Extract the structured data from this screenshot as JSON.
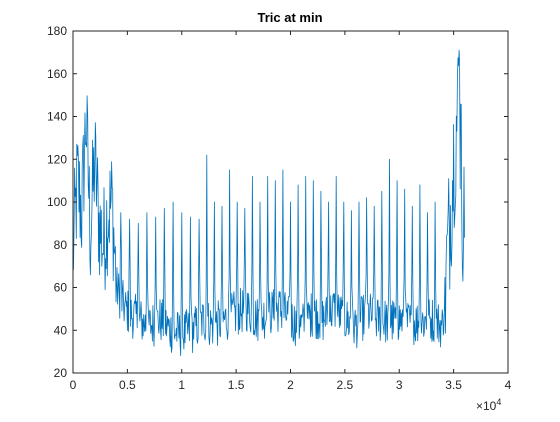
{
  "chart_data": {
    "type": "line",
    "title": "Tric at min",
    "xlabel": "",
    "ylabel": "",
    "xlim": [
      0,
      40000
    ],
    "ylim": [
      20,
      180
    ],
    "x_ticks": [
      0,
      5000,
      10000,
      15000,
      20000,
      25000,
      30000,
      35000,
      40000
    ],
    "x_tick_labels": [
      "0",
      "0.5",
      "1",
      "1.5",
      "2",
      "2.5",
      "3",
      "3.5",
      "4"
    ],
    "x_exponent_label": "×10",
    "x_exponent_power": "4",
    "y_ticks": [
      20,
      40,
      60,
      80,
      100,
      120,
      140,
      160,
      180
    ],
    "y_tick_labels": [
      "20",
      "40",
      "60",
      "80",
      "100",
      "120",
      "140",
      "160",
      "180"
    ],
    "grid": false,
    "box": true,
    "series": [
      {
        "color": "#0072BD",
        "description_of_trend": "noisy signal; high (~60-150) for x<4000, baseline ~30-60 with periodic spikes to ~90-120 from 4000 to 34000, rises to ~80-175 from 34500 to 36000",
        "x": [
          0,
          400,
          800,
          1200,
          1600,
          2000,
          2400,
          2800,
          3200,
          3600,
          4000,
          4400,
          4800,
          5200,
          6000,
          7000,
          8000,
          9000,
          10000,
          11000,
          12000,
          13000,
          14000,
          15000,
          16000,
          17000,
          18000,
          19000,
          20000,
          21000,
          22000,
          23000,
          24000,
          25000,
          26000,
          27000,
          28000,
          29000,
          30000,
          31000,
          32000,
          33000,
          34000,
          34500,
          35000,
          35500,
          35800,
          36000
        ],
        "y": [
          75,
          110,
          95,
          140,
          85,
          120,
          90,
          80,
          95,
          100,
          60,
          55,
          50,
          48,
          45,
          42,
          45,
          40,
          38,
          40,
          45,
          42,
          45,
          48,
          50,
          45,
          48,
          50,
          45,
          42,
          48,
          45,
          50,
          45,
          42,
          48,
          45,
          44,
          45,
          43,
          44,
          45,
          42,
          80,
          120,
          150,
          100,
          85
        ]
      }
    ],
    "spikes": {
      "x": [
        4400,
        5200,
        6000,
        6800,
        7600,
        8400,
        9200,
        10000,
        10800,
        11600,
        12300,
        13000,
        13700,
        14400,
        15100,
        15800,
        16500,
        17200,
        17900,
        18600,
        19300,
        20000,
        20700,
        21400,
        22100,
        22800,
        23500,
        24200,
        24900,
        25600,
        26300,
        27000,
        27700,
        28400,
        29100,
        29800,
        30500,
        31200,
        31900,
        32600,
        33300
      ],
      "y": [
        95,
        92,
        90,
        95,
        93,
        97,
        100,
        95,
        93,
        92,
        122,
        100,
        98,
        115,
        100,
        97,
        112,
        100,
        112,
        110,
        115,
        100,
        108,
        112,
        110,
        105,
        100,
        112,
        100,
        96,
        100,
        102,
        98,
        105,
        120,
        110,
        106,
        98,
        108,
        95,
        100
      ]
    }
  }
}
